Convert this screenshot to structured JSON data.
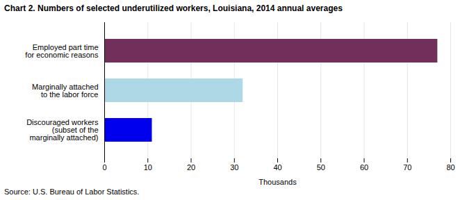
{
  "chart_data": {
    "type": "bar",
    "orientation": "horizontal",
    "title": "Chart 2. Numbers of selected underutilized workers, Louisiana, 2014 annual averages",
    "categories": [
      "Discouraged workers\n(subset of the\nmarginally attached)",
      "Marginally attached\nto the labor force",
      "Employed part time\nfor economic reasons"
    ],
    "values": [
      11,
      32,
      77
    ],
    "colors": [
      "#0000EE",
      "#ADD8E6",
      "#722F5B"
    ],
    "xlabel": "Thousands",
    "xlim": [
      0,
      80
    ],
    "xticks": [
      0,
      10,
      20,
      30,
      40,
      50,
      60,
      70,
      80
    ],
    "grid": true,
    "source": "Source: U.S. Bureau of Labor Statistics."
  }
}
